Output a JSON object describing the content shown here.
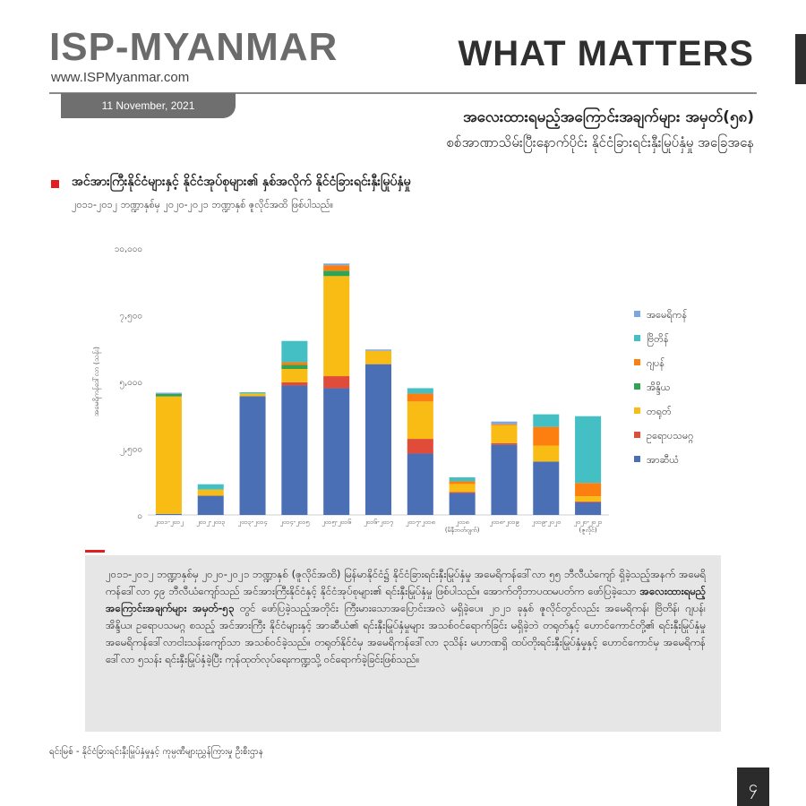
{
  "header": {
    "logo_text": "ISP-MYANMAR",
    "url": "www.ISPMyanmar.com",
    "date": "11 November, 2021",
    "headline": "WHAT MATTERS"
  },
  "title": {
    "line1": "အလေးထားရမည့်အကြောင်းအချက်များ အမှတ်(၅၈)",
    "line2": "စစ်အာဏာသိမ်းပြီးနောက်ပိုင်း နိုင်ငံခြားရင်းနှီးမြုပ်နှံမှု အခြေအနေ"
  },
  "subtitle": {
    "line1": "အင်အားကြီးနိုင်ငံများနှင့် နိုင်ငံအုပ်စုများ၏ နှစ်အလိုက် နိုင်ငံခြားရင်းနှီးမြုပ်နှံမှု",
    "line2": "၂၀၁၁-၂၀၁၂ ဘဏ္ဍာနှစ်မှ ၂၀၂၀-၂၀၂၁ ဘဏ္ဍာနှစ် ဇူလိုင်အထိ ဖြစ်ပါသည်။"
  },
  "chart_data": {
    "type": "bar",
    "stacked": true,
    "ylabel": "အမေရိကန်ဒေါ်လာ (သန်း)",
    "ylim": [
      0,
      10000
    ],
    "y_tick_labels": [
      "၀",
      "၂,၅၀၀",
      "၅,၀၀၀",
      "၇,၅၀၀",
      "၁၀,၀၀၀"
    ],
    "categories": [
      "၂၀၁၁-၂၀၁၂",
      "၂၀၁၂-၂၀၁၃",
      "၂၀၁၃-၂၀၁၄",
      "၂၀၁၄-၂၀၁၅",
      "၂၀၁၅-၂၀၁၆",
      "၂၀၁၆-၂၀၁၇",
      "၂၀၁၇-၂၀၁၈",
      "၂၀၁၈",
      "၂၀၁၈-၂၀၁၉",
      "၂၀၁၉-၂၀၂၀",
      "၂၀၂၀-၂၀၂၁"
    ],
    "category_notes": [
      "",
      "",
      "",
      "",
      "",
      "",
      "",
      "(မိနီဘတ်ဂျက်)",
      "",
      "",
      "(ဇူလိုင်)"
    ],
    "series": [
      {
        "name": "အာဆီယံ",
        "color": "#4a6fb5",
        "values": [
          40,
          720,
          4450,
          4850,
          4750,
          5650,
          2300,
          820,
          2630,
          2000,
          470
        ]
      },
      {
        "name": "ဥရောပသမဂ္ဂ",
        "color": "#e04b3a",
        "values": [
          0,
          0,
          0,
          120,
          450,
          0,
          550,
          40,
          60,
          0,
          30
        ]
      },
      {
        "name": "တရုတ်",
        "color": "#f9bc15",
        "values": [
          4400,
          230,
          100,
          500,
          3750,
          500,
          1400,
          300,
          670,
          600,
          200
        ]
      },
      {
        "name": "အိန္ဒိယ",
        "color": "#31a354",
        "values": [
          100,
          0,
          0,
          150,
          200,
          0,
          0,
          0,
          0,
          0,
          0
        ]
      },
      {
        "name": "ဂျပန်",
        "color": "#fd7f10",
        "values": [
          0,
          0,
          0,
          100,
          200,
          0,
          300,
          100,
          40,
          700,
          500
        ]
      },
      {
        "name": "ဗြိတိန်",
        "color": "#44bfc4",
        "values": [
          0,
          200,
          50,
          800,
          0,
          0,
          200,
          150,
          0,
          470,
          2500
        ]
      },
      {
        "name": "အမေရိကန်",
        "color": "#7da6de",
        "values": [
          40,
          0,
          0,
          0,
          70,
          50,
          0,
          0,
          100,
          0,
          0
        ]
      }
    ],
    "legend_position": "right",
    "grid": false
  },
  "body_text": {
    "before_bold": "၂၀၁၁-၂၀၁၂ ဘဏ္ဍာနှစ်မှ ၂၀၂၀-၂၀၂၁ ဘဏ္ဍာနှစ် (ဇူလိုင်အထိ) မြန်မာနိုင်ငံ၌ နိုင်ငံခြားရင်းနှီးမြုပ်နှံမှု အမေရိကန်ဒေါ်လာ ၅၅ ဘီလီယံကျော် ရှိခဲ့သည့်အနက် အမေရိကန်ဒေါ်လာ ၄၉ ဘီလီယံကျော်သည် အင်အားကြီးနိုင်ငံနှင့် နိုင်ငံအုပ်စုများ၏ ရင်းနှီးမြုပ်နှံမှု ဖြစ်ပါသည်။ အောက်တိုဘာပထမပတ်က ဖော်ပြခဲ့သော ",
    "bold": "အလေးထားရမည့် အကြောင်းအချက်များ အမှတ်-၅၃",
    "after_bold": " တွင် ဖော်ပြခဲ့သည့်အတိုင်း ကြီးမားသောအပြောင်းအလဲ မရှိခဲ့ပေ။ ၂၀၂၁ ခုနှစ် ဇူလိုင်တွင်လည်း အမေရိကန်၊ ဗြိတိန်၊ ဂျပန်၊ အိန္ဒိယ၊ ဥရောပသမဂ္ဂ စသည့် အင်အားကြီး နိုင်ငံများနှင့် အာဆီယံ၏ ရင်းနှီးမြုပ်နှံမှုများ အသစ်ဝင်ရောက်ခြင်း မရှိခဲ့ဘဲ တရုတ်နှင့် ဟောင်ကောင်တို့၏ ရင်းနှီးမြုပ်နှံမှု အမေရိကန်ဒေါ်လာငါးသန်းကျော်သာ အသစ်ဝင်ခဲ့သည်။ တရုတ်နိုင်ငံမှ အမေရိကန်ဒေါ်လာ ၃သိန်း မဟာဏရှိ ထပ်တိုးရင်းနှီးမြုပ်နှံမှုနှင့် ဟောင်ကောင်မှ အမေရိကန်ဒေါ်လာ ၅သန်း ရင်းနှီးမြုပ်နှံခဲ့ပြီး ကုန်ထုတ်လုပ်ရေးကဏ္ဍသို့ ဝင်ရောက်ခဲ့ခြင်းဖြစ်သည်။"
  },
  "source": "ရင်းမြစ် -   နိုင်ငံခြားရင်းနှီးမြုပ်နှံမှုနှင့် ကုမ္ပဏီများညွှန်ကြားမှု ဦးစီးဌာန",
  "page_number": "၄"
}
